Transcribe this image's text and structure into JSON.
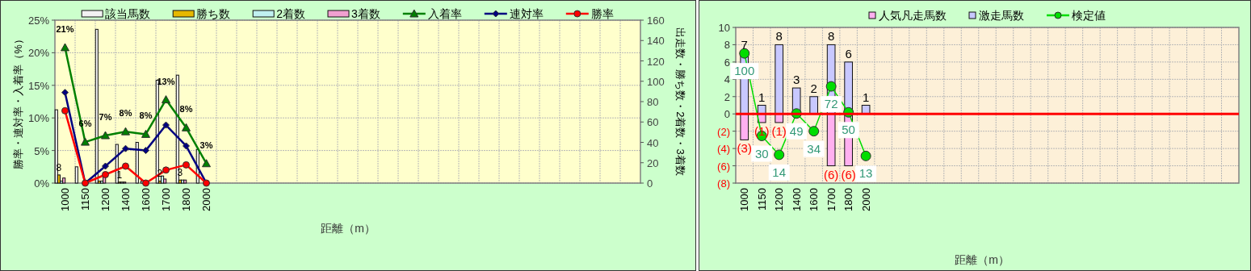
{
  "chart_data": [
    {
      "type": "bar",
      "categories": [
        "1000",
        "1150",
        "1200",
        "1400",
        "1600",
        "1700",
        "1800",
        "2000",
        null,
        null,
        null,
        null,
        null,
        null,
        null,
        null,
        null,
        null,
        null,
        null,
        null,
        null,
        null,
        null,
        null,
        null,
        null,
        null,
        null
      ],
      "xlabel": "距離（m）",
      "ylabel": "勝率・連対率・入着率（%）",
      "y2label": "出走数・勝ち数・2着数・3着数",
      "ylim": [
        0,
        25
      ],
      "yticks": [
        {
          "value": 0,
          "label": "0%"
        },
        {
          "value": 5,
          "label": "5%"
        },
        {
          "value": 10,
          "label": "10%"
        },
        {
          "value": 15,
          "label": "15%"
        },
        {
          "value": 20,
          "label": "20%"
        },
        {
          "value": 25,
          "label": "25%"
        }
      ],
      "y2lim": [
        0,
        160
      ],
      "y2ticks": [
        0,
        20,
        40,
        60,
        80,
        100,
        120,
        140,
        160
      ],
      "grid": true,
      "legend": "top",
      "series": [
        {
          "name": "該当馬数",
          "axis": "y2",
          "color": "#f2f2f2",
          "values": [
            72,
            16,
            151,
            38,
            40,
            101,
            106,
            33,
            null,
            null,
            null,
            null,
            null,
            null,
            null,
            null,
            null,
            null,
            null,
            null,
            null,
            null,
            null,
            null,
            null,
            null,
            null,
            null,
            null
          ]
        },
        {
          "name": "勝ち数",
          "axis": "y2",
          "color": "#e6b800",
          "values": [
            8,
            0,
            2,
            1,
            0,
            2,
            3,
            0,
            null,
            null,
            null,
            null,
            null,
            null,
            null,
            null,
            null,
            null,
            null,
            null,
            null,
            null,
            null,
            null,
            null,
            null,
            null,
            null,
            null
          ],
          "value_labels": [
            "8",
            null,
            null,
            "1",
            null,
            "2",
            "3",
            null,
            null,
            null,
            null,
            null,
            null,
            null,
            null,
            null,
            null,
            null,
            null,
            null,
            null,
            null,
            null,
            null,
            null,
            null,
            null,
            null,
            null
          ]
        },
        {
          "name": "2着数",
          "axis": "y2",
          "color": "#c0f0f0",
          "values": [
            2,
            0,
            2,
            1,
            2,
            7,
            3,
            0,
            null,
            null,
            null,
            null,
            null,
            null,
            null,
            null,
            null,
            null,
            null,
            null,
            null,
            null,
            null,
            null,
            null,
            null,
            null,
            null,
            null
          ]
        },
        {
          "name": "3着数",
          "axis": "y2",
          "color": "#f0a0d0",
          "values": [
            5,
            1,
            7,
            1,
            1,
            4,
            3,
            1,
            null,
            null,
            null,
            null,
            null,
            null,
            null,
            null,
            null,
            null,
            null,
            null,
            null,
            null,
            null,
            null,
            null,
            null,
            null,
            null,
            null
          ]
        },
        {
          "name": "入着率",
          "type": "line",
          "color": "#008000",
          "marker": "triangle",
          "values": [
            20.8,
            6.3,
            7.3,
            7.9,
            7.5,
            12.8,
            8.5,
            3.0,
            null,
            null,
            null,
            null,
            null,
            null,
            null,
            null,
            null,
            null,
            null,
            null,
            null,
            null,
            null,
            null,
            null,
            null,
            null,
            null,
            null
          ],
          "value_labels": [
            "21%",
            "6%",
            "7%",
            "8%",
            "8%",
            "13%",
            "8%",
            "3%",
            null,
            null,
            null,
            null,
            null,
            null,
            null,
            null,
            null,
            null,
            null,
            null,
            null,
            null,
            null,
            null,
            null,
            null,
            null,
            null,
            null
          ]
        },
        {
          "name": "連対率",
          "type": "line",
          "color": "#000080",
          "marker": "diamond",
          "values": [
            13.9,
            0,
            2.6,
            5.3,
            5.0,
            8.9,
            5.7,
            0,
            null,
            null,
            null,
            null,
            null,
            null,
            null,
            null,
            null,
            null,
            null,
            null,
            null,
            null,
            null,
            null,
            null,
            null,
            null,
            null,
            null
          ]
        },
        {
          "name": "勝率",
          "type": "line",
          "color": "#ff0000",
          "marker": "circle",
          "values": [
            11.1,
            0,
            1.3,
            2.6,
            0,
            2.0,
            2.8,
            0,
            null,
            null,
            null,
            null,
            null,
            null,
            null,
            null,
            null,
            null,
            null,
            null,
            null,
            null,
            null,
            null,
            null,
            null,
            null,
            null,
            null
          ]
        }
      ]
    },
    {
      "type": "bar",
      "stacked": true,
      "categories": [
        "1000",
        "1150",
        "1200",
        "1400",
        "1600",
        "1700",
        "1800",
        "2000",
        null,
        null,
        null,
        null,
        null,
        null,
        null,
        null,
        null,
        null,
        null,
        null,
        null,
        null,
        null,
        null,
        null,
        null,
        null,
        null,
        null
      ],
      "xlabel": "距離（m）",
      "ylim": [
        -8,
        10
      ],
      "yticks": [
        {
          "value": -8,
          "label": "(8)"
        },
        {
          "value": -6,
          "label": "(6)"
        },
        {
          "value": -4,
          "label": "(4)"
        },
        {
          "value": -2,
          "label": "(2)"
        },
        0,
        2,
        4,
        6,
        8,
        10
      ],
      "y2lim": [
        -10,
        122
      ],
      "grid": true,
      "legend": "top",
      "ref_lines": [
        {
          "axis": "y",
          "value": 0,
          "color": "#ff0000"
        }
      ],
      "series": [
        {
          "name": "人気凡走馬数",
          "color": "#ffb0f0",
          "values": [
            -3,
            -1,
            -1,
            null,
            null,
            -6,
            -6,
            null,
            null,
            null,
            null,
            null,
            null,
            null,
            null,
            null,
            null,
            null,
            null,
            null,
            null,
            null,
            null,
            null,
            null,
            null,
            null,
            null,
            null
          ],
          "value_labels": [
            "(3)",
            "(1)",
            "(1)",
            null,
            null,
            "(6)",
            "(6)",
            null,
            null,
            null,
            null,
            null,
            null,
            null,
            null,
            null,
            null,
            null,
            null,
            null,
            null,
            null,
            null,
            null,
            null,
            null,
            null,
            null,
            null
          ]
        },
        {
          "name": "激走馬数",
          "color": "#c8c8ff",
          "values": [
            7,
            1,
            8,
            3,
            2,
            8,
            6,
            1,
            null,
            null,
            null,
            null,
            null,
            null,
            null,
            null,
            null,
            null,
            null,
            null,
            null,
            null,
            null,
            null,
            null,
            null,
            null,
            null,
            null
          ],
          "value_labels": [
            "7",
            "1",
            "8",
            "3",
            "2",
            "8",
            "6",
            "1",
            null,
            null,
            null,
            null,
            null,
            null,
            null,
            null,
            null,
            null,
            null,
            null,
            null,
            null,
            null,
            null,
            null,
            null,
            null,
            null,
            null
          ]
        },
        {
          "name": "検定値",
          "type": "line",
          "axis": "y2",
          "color": "#00dd00",
          "marker": "circle",
          "values": [
            100,
            30,
            14,
            49,
            34,
            72,
            50,
            13,
            null,
            null,
            null,
            null,
            null,
            null,
            null,
            null,
            null,
            null,
            null,
            null,
            null,
            null,
            null,
            null,
            null,
            null,
            null,
            null,
            null
          ],
          "value_labels": [
            "100",
            "30",
            "14",
            "49",
            "34",
            "72",
            "50",
            "13",
            null,
            null,
            null,
            null,
            null,
            null,
            null,
            null,
            null,
            null,
            null,
            null,
            null,
            null,
            null,
            null,
            null,
            null,
            null,
            null,
            null
          ]
        }
      ]
    }
  ]
}
